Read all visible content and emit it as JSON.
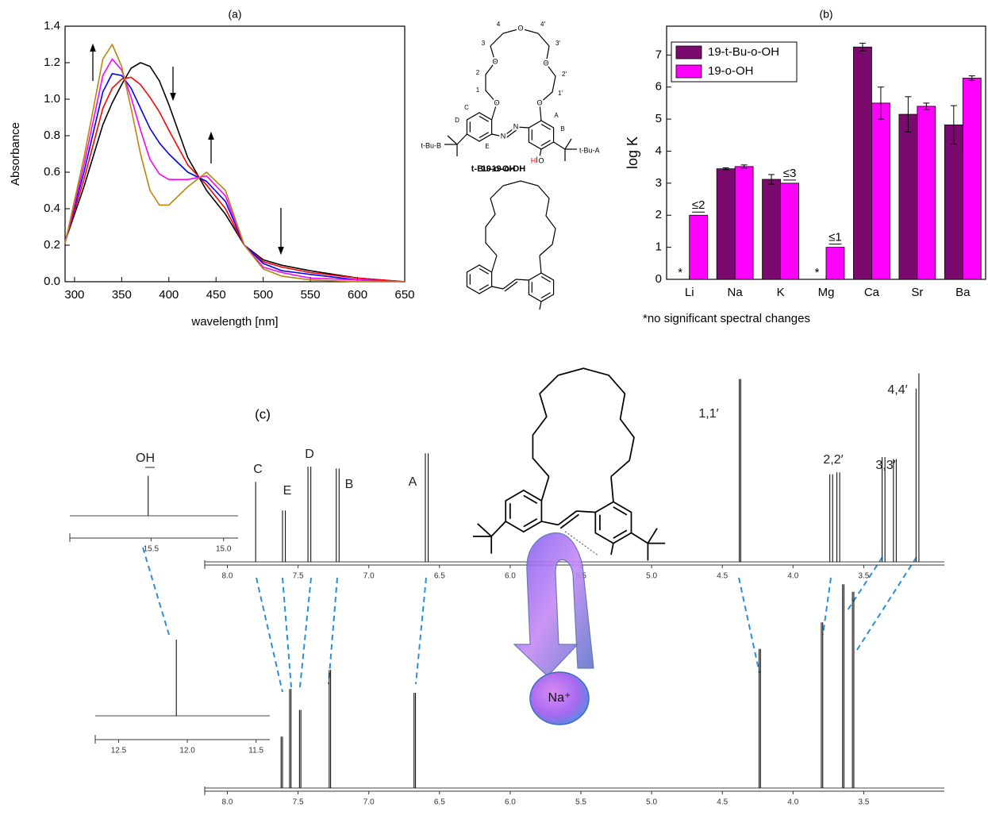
{
  "chart_data": [
    {
      "type": "line",
      "title": "(a)",
      "x_label": "wavelength [nm]",
      "y_label": "Absorbance",
      "x": [
        290,
        310,
        330,
        340,
        350,
        360,
        370,
        380,
        390,
        400,
        420,
        440,
        460,
        480,
        500,
        520,
        550,
        600,
        650
      ],
      "series": [
        {
          "color": "#000000",
          "values": [
            0.22,
            0.52,
            0.86,
            0.98,
            1.08,
            1.17,
            1.2,
            1.18,
            1.1,
            0.97,
            0.68,
            0.5,
            0.37,
            0.2,
            0.12,
            0.09,
            0.06,
            0.02,
            0
          ]
        },
        {
          "color": "#ff0000",
          "values": [
            0.22,
            0.56,
            0.95,
            1.06,
            1.11,
            1.12,
            1.08,
            1.01,
            0.93,
            0.83,
            0.64,
            0.53,
            0.4,
            0.2,
            0.11,
            0.08,
            0.05,
            0.02,
            0
          ]
        },
        {
          "color": "#0000ff",
          "values": [
            0.22,
            0.6,
            1.04,
            1.14,
            1.13,
            1.06,
            0.95,
            0.84,
            0.76,
            0.7,
            0.6,
            0.55,
            0.44,
            0.2,
            0.1,
            0.06,
            0.04,
            0.01,
            0
          ]
        },
        {
          "color": "#ff00ff",
          "values": [
            0.21,
            0.64,
            1.13,
            1.22,
            1.16,
            1.01,
            0.83,
            0.67,
            0.59,
            0.56,
            0.56,
            0.58,
            0.47,
            0.2,
            0.08,
            0.05,
            0.02,
            0.01,
            0
          ]
        },
        {
          "color": "#b8860b",
          "values": [
            0.21,
            0.68,
            1.22,
            1.3,
            1.18,
            0.95,
            0.7,
            0.5,
            0.42,
            0.42,
            0.52,
            0.6,
            0.5,
            0.2,
            0.07,
            0.03,
            0.01,
            0,
            0
          ]
        }
      ],
      "xlim": [
        290,
        650
      ],
      "xticks": [
        300,
        350,
        400,
        450,
        500,
        550,
        600,
        650
      ],
      "ylim": [
        0,
        1.4
      ],
      "yticks": [
        {
          "value": 0,
          "label": "0.0"
        },
        0.2,
        0.4,
        0.6,
        0.8,
        {
          "value": 1,
          "label": "1.0"
        },
        1.2,
        1.4
      ]
    },
    {
      "type": "bar",
      "title": "(b)",
      "y_label": "log K",
      "categories": [
        "Li",
        "Na",
        "K",
        "Mg",
        "Ca",
        "Sr",
        "Ba"
      ],
      "series": [
        {
          "name": "19-t-Bu-o-OH",
          "color": "#7b0a6e",
          "values": [
            null,
            3.45,
            3.12,
            null,
            7.25,
            5.15,
            4.82
          ],
          "errors": [
            null,
            0.03,
            0.15,
            null,
            0.12,
            0.55,
            0.6
          ]
        },
        {
          "name": "19-o-OH",
          "color": "#ff00ff",
          "values": [
            2,
            3.52,
            3,
            1,
            5.5,
            5.4,
            6.28
          ],
          "errors": [
            null,
            0.05,
            null,
            null,
            0.5,
            0.1,
            0.07
          ]
        }
      ],
      "annotations": [
        "≤2",
        "≤3",
        "≤1",
        "*",
        "*"
      ],
      "footnote": "*no significant spectral changes",
      "ylim": [
        0,
        7.9
      ],
      "yticks": [
        0,
        1,
        2,
        3,
        4,
        5,
        6,
        7
      ],
      "legend": "top-left"
    },
    {
      "type": "spectrum",
      "title": "(c)",
      "peak_labels": [
        "C",
        "E",
        "D",
        "B",
        "A",
        "1,1′",
        "2,2′",
        "3,3′",
        "4,4′"
      ],
      "x": [
        7.8,
        7.61,
        7.59,
        7.43,
        7.41,
        7.23,
        7.21,
        6.6,
        6.58,
        4.38,
        4.37,
        3.74,
        3.72,
        3.69,
        3.67,
        3.37,
        3.35,
        3.29,
        3.27,
        3.13,
        3.11
      ],
      "values": [
        42,
        27,
        27,
        50,
        50,
        49,
        49,
        57,
        57,
        96,
        96,
        46,
        46,
        47,
        47,
        55,
        55,
        54,
        54,
        91,
        99
      ],
      "xlim": [
        8.16,
        2.93
      ],
      "xticks": [
        {
          "value": 8,
          "label": "8.0"
        },
        7.5,
        {
          "value": 7,
          "label": "7.0"
        },
        6.5,
        {
          "value": 6,
          "label": "6.0"
        },
        5.5,
        {
          "value": 5,
          "label": "5.0"
        },
        4.5,
        {
          "value": 4,
          "label": "4.0"
        },
        3.5
      ]
    },
    {
      "type": "spectrum",
      "x": [
        7.62,
        7.61,
        7.56,
        7.55,
        7.49,
        7.48,
        7.28,
        7.27,
        6.68,
        6.67,
        4.24,
        4.23,
        3.8,
        3.79,
        3.65,
        3.64,
        3.58,
        3.57
      ],
      "values": [
        27,
        27,
        52,
        52,
        41,
        41,
        62,
        62,
        50,
        50,
        73,
        73,
        87,
        87,
        107,
        107,
        103,
        103
      ],
      "xlim": [
        8.16,
        2.93
      ],
      "xticks": [
        {
          "value": 8,
          "label": "8.0"
        },
        7.5,
        {
          "value": 7,
          "label": "7.0"
        },
        6.5,
        {
          "value": 6,
          "label": "6.0"
        },
        5.5,
        {
          "value": 5,
          "label": "5.0"
        },
        4.5,
        {
          "value": 4,
          "label": "4.0"
        },
        3.5
      ]
    },
    {
      "type": "spectrum",
      "peak_labels": [
        "OH"
      ],
      "x": [
        15.52
      ],
      "values": [
        21
      ],
      "xlim": [
        16.06,
        14.9
      ],
      "xticks": [
        15.5,
        {
          "value": 15,
          "label": "15.0"
        }
      ]
    },
    {
      "type": "spectrum",
      "x": [
        12.08
      ],
      "values": [
        40
      ],
      "xlim": [
        12.67,
        11.4
      ],
      "xticks": [
        12.5,
        {
          "value": 12,
          "label": "12.0"
        },
        11.5
      ]
    }
  ],
  "structures": [
    {
      "name": "t-Bu-19-o-OH",
      "atoms": [
        "O",
        "O",
        "O",
        "O",
        "O",
        "N",
        "N",
        "HO"
      ]
    },
    {
      "name": "19-o-OH",
      "atoms": [
        "O",
        "O",
        "O",
        "O",
        "O",
        "N",
        "N",
        "HO"
      ]
    },
    {
      "atoms": [
        "O",
        "O",
        "O",
        "O",
        "O",
        "N",
        "N",
        "H",
        "O"
      ],
      "carbons": [
        "1",
        "2",
        "3",
        "4",
        "4′",
        "3′",
        "2′",
        "1′"
      ],
      "rings": [
        "C",
        "D",
        "E",
        "A",
        "B"
      ],
      "substituents": [
        "t-Bu-B",
        "t-Bu-A"
      ],
      "ion": "Na⁺"
    }
  ]
}
